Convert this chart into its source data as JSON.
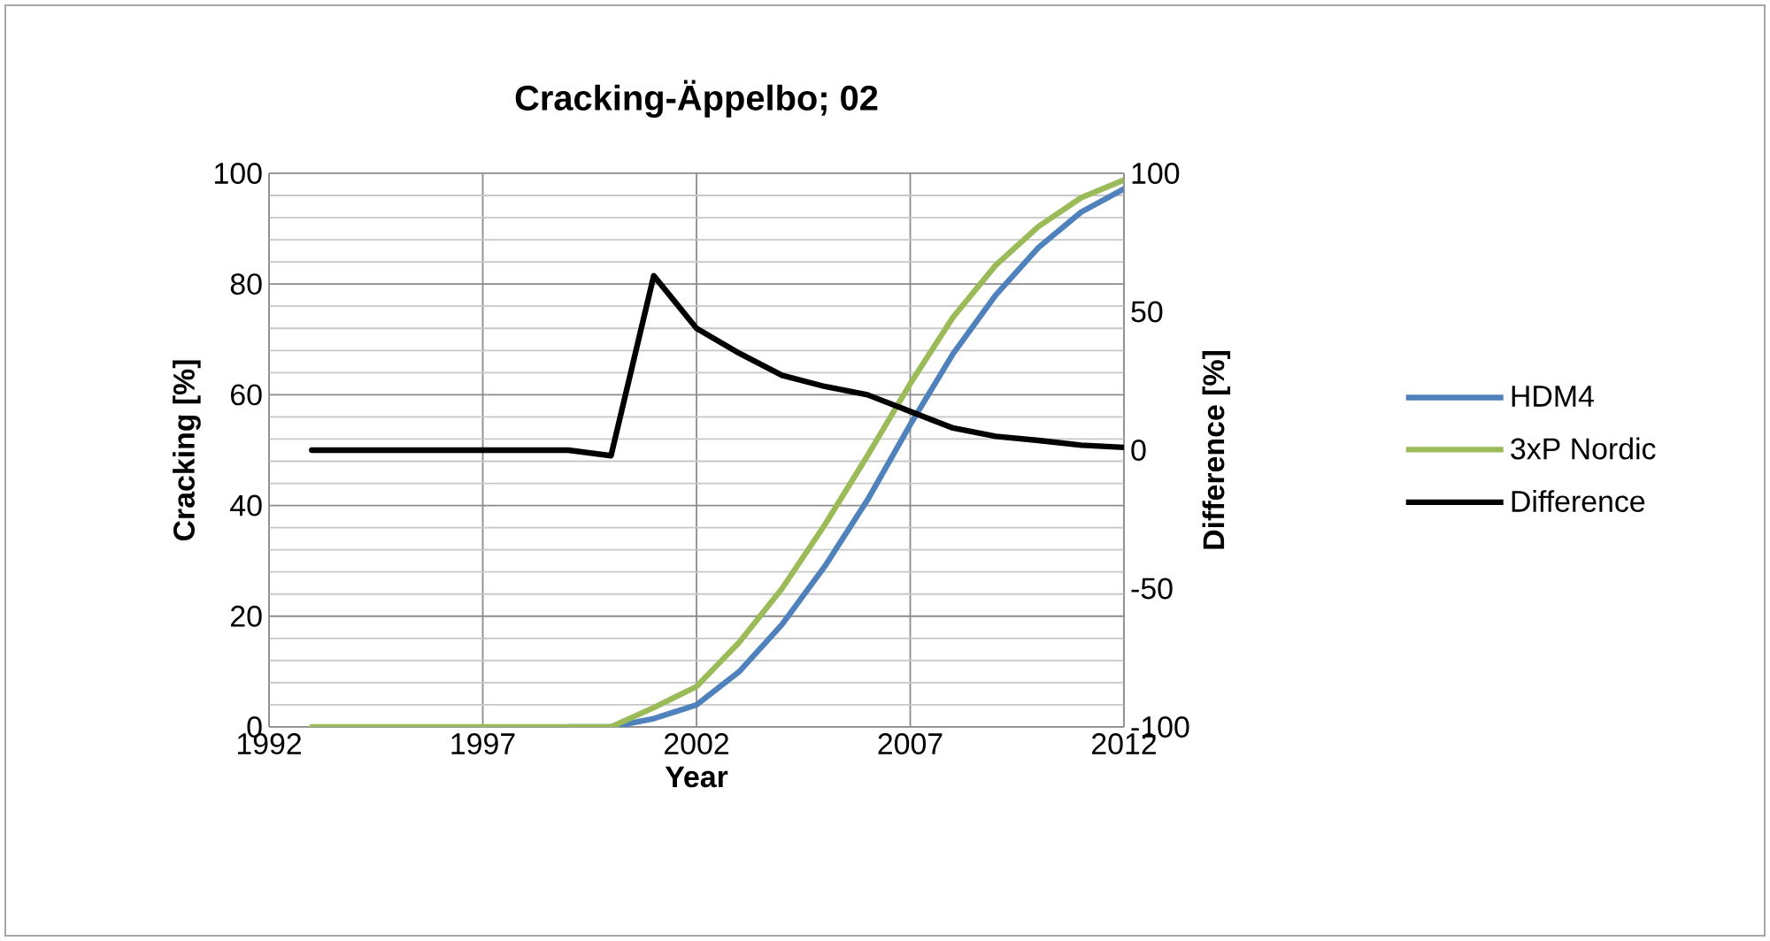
{
  "chart_data": {
    "type": "line",
    "title": "Cracking-Äppelbo; 02",
    "xlabel": "Year",
    "ylabel": "Cracking [%]",
    "y2label": "Difference [%]",
    "x": [
      1993,
      1994,
      1995,
      1996,
      1997,
      1998,
      1999,
      2000,
      2001,
      2002,
      2003,
      2004,
      2005,
      2006,
      2007,
      2008,
      2009,
      2010,
      2011,
      2012
    ],
    "xlim": [
      1992,
      2012
    ],
    "xticks": [
      1992,
      1997,
      2002,
      2007,
      2012
    ],
    "ylim": [
      0,
      100
    ],
    "yticks": [
      0,
      20,
      40,
      60,
      80,
      100
    ],
    "y2lim": [
      -100,
      100
    ],
    "y2ticks": [
      -100,
      -50,
      0,
      50,
      100
    ],
    "grid": true,
    "legend": "right",
    "marker": "none",
    "line_style": "solid",
    "series": [
      {
        "name": "HDM4",
        "color": "#4f81bd",
        "values": [
          null,
          null,
          null,
          null,
          null,
          null,
          0,
          0,
          1.5,
          4,
          10,
          18.5,
          29,
          41,
          54.6,
          67.4,
          78,
          86.6,
          93,
          97.2
        ]
      },
      {
        "name": "3xP Nordic",
        "color": "#9bbb59",
        "values": [
          0,
          0,
          0,
          0,
          0,
          0,
          0,
          0,
          3.5,
          7.3,
          15.3,
          25,
          36.5,
          49,
          62,
          74,
          83.4,
          90.4,
          95.6,
          98.8
        ]
      },
      {
        "name": "Difference",
        "color": "#000000",
        "axis": "y2",
        "values": [
          0,
          0,
          0,
          0,
          0,
          0,
          0,
          -2,
          63,
          44,
          35,
          27,
          23,
          20,
          14,
          8,
          5,
          3.5,
          1.8,
          1
        ]
      }
    ]
  }
}
